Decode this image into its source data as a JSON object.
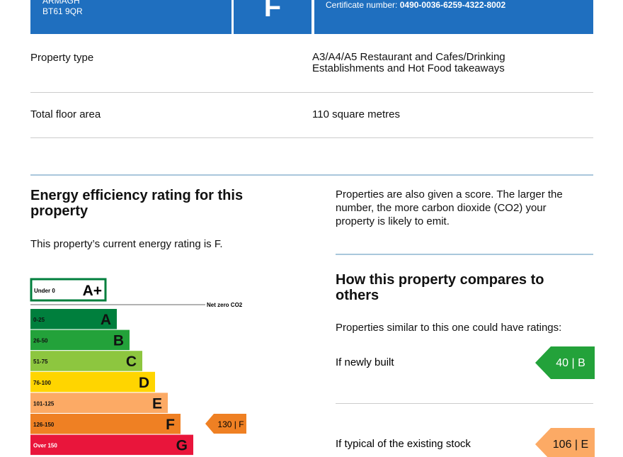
{
  "header": {
    "address": [
      "ARMAGH",
      "BT61 9QR"
    ],
    "rating": "F",
    "certificate_label": "Certificate number:",
    "certificate_number": "0490-0036-6259-4322-8002"
  },
  "details": [
    {
      "label": "Property type",
      "value": [
        "A3/A4/A5 Restaurant and Cafes/Drinking",
        "Establishments and Hot Food takeaways"
      ]
    },
    {
      "label": "Total floor area",
      "value": [
        "110 square metres"
      ]
    }
  ],
  "energy": {
    "title": [
      "Energy efficiency rating for this",
      "property"
    ],
    "current_text": "This property’s current energy rating is F.",
    "net_zero": "Net zero CO2",
    "bands": [
      {
        "range": "Under 0",
        "letter": "A+",
        "color": "#ffffff"
      },
      {
        "range": "0-25",
        "letter": "A",
        "color": "#007f3d"
      },
      {
        "range": "26-50",
        "letter": "B",
        "color": "#23a23a"
      },
      {
        "range": "51-75",
        "letter": "C",
        "color": "#8dc63f"
      },
      {
        "range": "76-100",
        "letter": "D",
        "color": "#ffd500"
      },
      {
        "range": "101-125",
        "letter": "E",
        "color": "#fcaa65"
      },
      {
        "range": "126-150",
        "letter": "F",
        "color": "#ef8023"
      },
      {
        "range": "Over 150",
        "letter": "G",
        "color": "#e9153b"
      }
    ],
    "current_marker": {
      "text": "130 | F",
      "color": "#ef8023"
    }
  },
  "score_text": [
    "Properties are also given a score. The larger the",
    "number, the more carbon dioxide (CO2) your",
    "property is likely to emit."
  ],
  "compare": {
    "title": [
      "How this property compares to",
      "others"
    ],
    "intro": "Properties similar to this one could have ratings:",
    "items": [
      {
        "label": "If newly built",
        "rating": "40 | B",
        "color": "#23a23a"
      },
      {
        "label": "If typical of the existing stock",
        "rating": "106 | E",
        "color": "#fcaa65"
      }
    ]
  }
}
